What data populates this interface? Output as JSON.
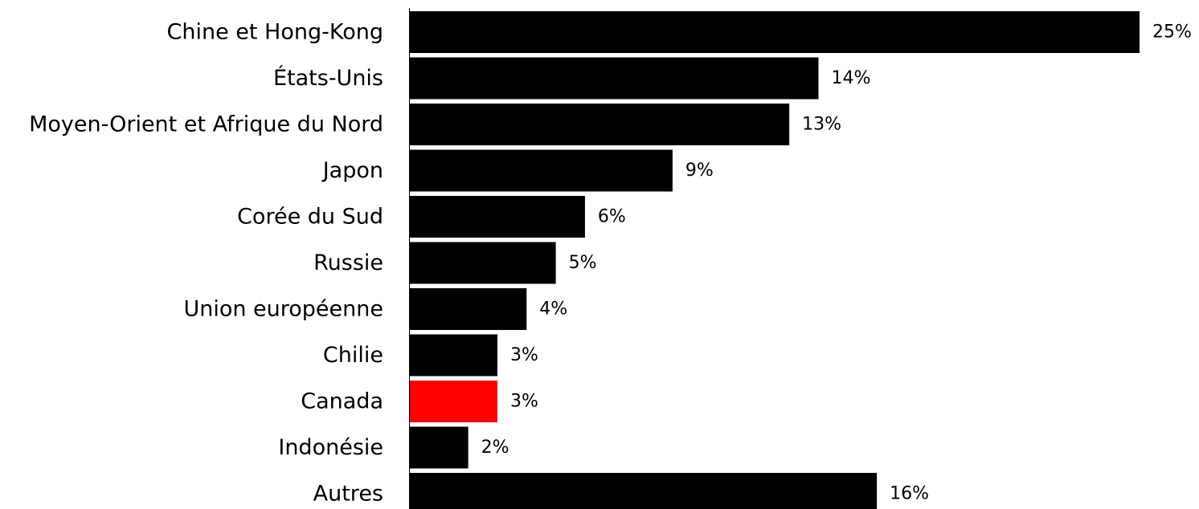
{
  "chart_data": {
    "type": "bar",
    "orientation": "horizontal",
    "categories": [
      "Chine et Hong-Kong",
      "États-Unis",
      "Moyen-Orient et Afrique du Nord",
      "Japon",
      "Corée du Sud",
      "Russie",
      "Union européenne",
      "Chilie",
      "Canada",
      "Indonésie",
      "Autres"
    ],
    "values": [
      25,
      14,
      13,
      9,
      6,
      5,
      4,
      3,
      3,
      2,
      16
    ],
    "value_labels": [
      "25%",
      "14%",
      "13%",
      "9%",
      "6%",
      "5%",
      "4%",
      "3%",
      "3%",
      "2%",
      "16%"
    ],
    "xlim": [
      0,
      25
    ],
    "grid": false,
    "legend": "none",
    "bar_color": "#000000",
    "highlight": {
      "category": "Canada",
      "color": "#ff0000"
    }
  }
}
